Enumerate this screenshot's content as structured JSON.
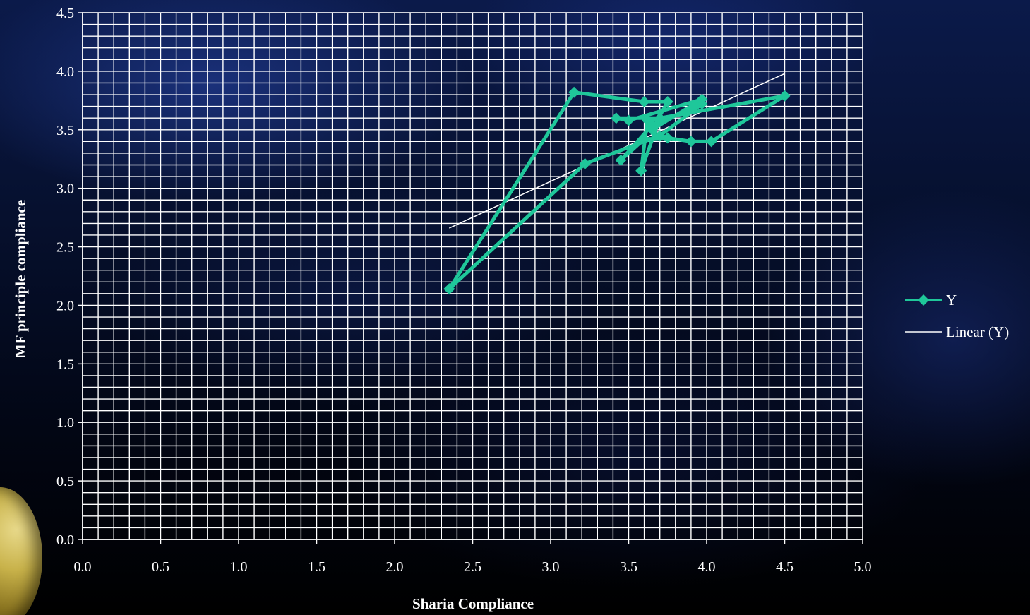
{
  "chart_data": {
    "type": "line",
    "title": "",
    "xlabel": "Sharia Compliance",
    "ylabel": "MF principle compliance",
    "xlim": [
      0.0,
      5.0
    ],
    "ylim": [
      0.0,
      4.5
    ],
    "x_ticks": [
      "0.0",
      "0.5",
      "1.0",
      "1.5",
      "2.0",
      "2.5",
      "3.0",
      "3.5",
      "4.0",
      "4.5",
      "5.0"
    ],
    "y_ticks": [
      "0.0",
      "0.5",
      "1.0",
      "1.5",
      "2.0",
      "2.5",
      "3.0",
      "3.5",
      "4.0",
      "4.5"
    ],
    "grid": true,
    "legend_position": "right",
    "series": [
      {
        "name": "Y",
        "color": "#1fc79a",
        "marker": "diamond",
        "points": [
          [
            2.35,
            2.14
          ],
          [
            3.15,
            3.82
          ],
          [
            3.6,
            3.74
          ],
          [
            3.75,
            3.74
          ],
          [
            3.65,
            3.5
          ],
          [
            3.97,
            3.76
          ],
          [
            3.5,
            3.58
          ],
          [
            3.42,
            3.6
          ],
          [
            3.7,
            3.6
          ],
          [
            3.58,
            3.15
          ],
          [
            3.62,
            3.58
          ],
          [
            4.5,
            3.79
          ],
          [
            4.03,
            3.4
          ],
          [
            3.9,
            3.4
          ],
          [
            3.75,
            3.43
          ],
          [
            3.6,
            3.42
          ],
          [
            3.45,
            3.24
          ],
          [
            3.65,
            3.54
          ],
          [
            3.97,
            3.72
          ],
          [
            3.7,
            3.45
          ],
          [
            3.22,
            3.21
          ],
          [
            2.35,
            2.14
          ]
        ]
      },
      {
        "name": "Linear (Y)",
        "color": "#ffffff",
        "marker": "none",
        "points": [
          [
            2.35,
            2.66
          ],
          [
            4.5,
            3.98
          ]
        ]
      }
    ]
  }
}
